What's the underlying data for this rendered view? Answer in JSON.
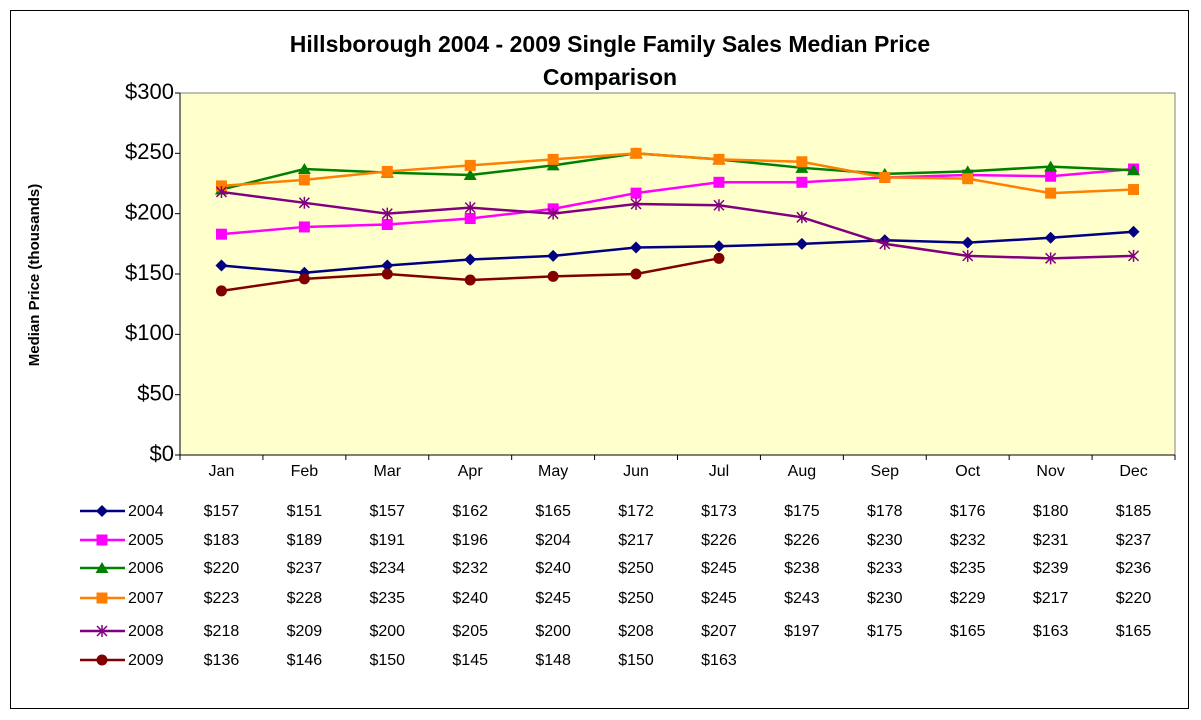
{
  "chart_data": {
    "type": "line",
    "title": "Hillsborough 2004 - 2009 Single Family Sales Median Price Comparison",
    "y_label": "Median Price (thousands)",
    "categories": [
      "Jan",
      "Feb",
      "Mar",
      "Apr",
      "May",
      "Jun",
      "Jul",
      "Aug",
      "Sep",
      "Oct",
      "Nov",
      "Dec"
    ],
    "ylim": [
      0,
      300
    ],
    "yticks": [
      {
        "value": 0,
        "label": "$0"
      },
      {
        "value": 50,
        "label": "$50"
      },
      {
        "value": 100,
        "label": "$100"
      },
      {
        "value": 150,
        "label": "$150"
      },
      {
        "value": 200,
        "label": "$200"
      },
      {
        "value": 250,
        "label": "$250"
      },
      {
        "value": 300,
        "label": "$300"
      }
    ],
    "grid": false,
    "plot_background": "#ffffcc",
    "series": [
      {
        "name": "2004",
        "color": "#000080",
        "marker": "diamond",
        "values": [
          157,
          151,
          157,
          162,
          165,
          172,
          173,
          175,
          178,
          176,
          180,
          185
        ],
        "value_labels": [
          "$157",
          "$151",
          "$157",
          "$162",
          "$165",
          "$172",
          "$173",
          "$175",
          "$178",
          "$176",
          "$180",
          "$185"
        ]
      },
      {
        "name": "2005",
        "color": "#ff00ff",
        "marker": "square",
        "values": [
          183,
          189,
          191,
          196,
          204,
          217,
          226,
          226,
          230,
          232,
          231,
          237
        ],
        "value_labels": [
          "$183",
          "$189",
          "$191",
          "$196",
          "$204",
          "$217",
          "$226",
          "$226",
          "$230",
          "$232",
          "$231",
          "$237"
        ]
      },
      {
        "name": "2006",
        "color": "#008000",
        "marker": "triangle",
        "values": [
          220,
          237,
          234,
          232,
          240,
          250,
          245,
          238,
          233,
          235,
          239,
          236
        ],
        "value_labels": [
          "$220",
          "$237",
          "$234",
          "$232",
          "$240",
          "$250",
          "$245",
          "$238",
          "$233",
          "$235",
          "$239",
          "$236"
        ]
      },
      {
        "name": "2007",
        "color": "#ff7f00",
        "marker": "square",
        "values": [
          223,
          228,
          235,
          240,
          245,
          250,
          245,
          243,
          230,
          229,
          217,
          220
        ],
        "value_labels": [
          "$223",
          "$228",
          "$235",
          "$240",
          "$245",
          "$250",
          "$245",
          "$243",
          "$230",
          "$229",
          "$217",
          "$220"
        ]
      },
      {
        "name": "2008",
        "color": "#800080",
        "marker": "star",
        "values": [
          218,
          209,
          200,
          205,
          200,
          208,
          207,
          197,
          175,
          165,
          163,
          165
        ],
        "value_labels": [
          "$218",
          "$209",
          "$200",
          "$205",
          "$200",
          "$208",
          "$207",
          "$197",
          "$175",
          "$165",
          "$163",
          "$165"
        ]
      },
      {
        "name": "2009",
        "color": "#800000",
        "marker": "circle",
        "values": [
          136,
          146,
          150,
          145,
          148,
          150,
          163,
          null,
          null,
          null,
          null,
          null
        ],
        "value_labels": [
          "$136",
          "$146",
          "$150",
          "$145",
          "$148",
          "$150",
          "$163",
          null,
          null,
          null,
          null,
          null
        ]
      }
    ]
  }
}
